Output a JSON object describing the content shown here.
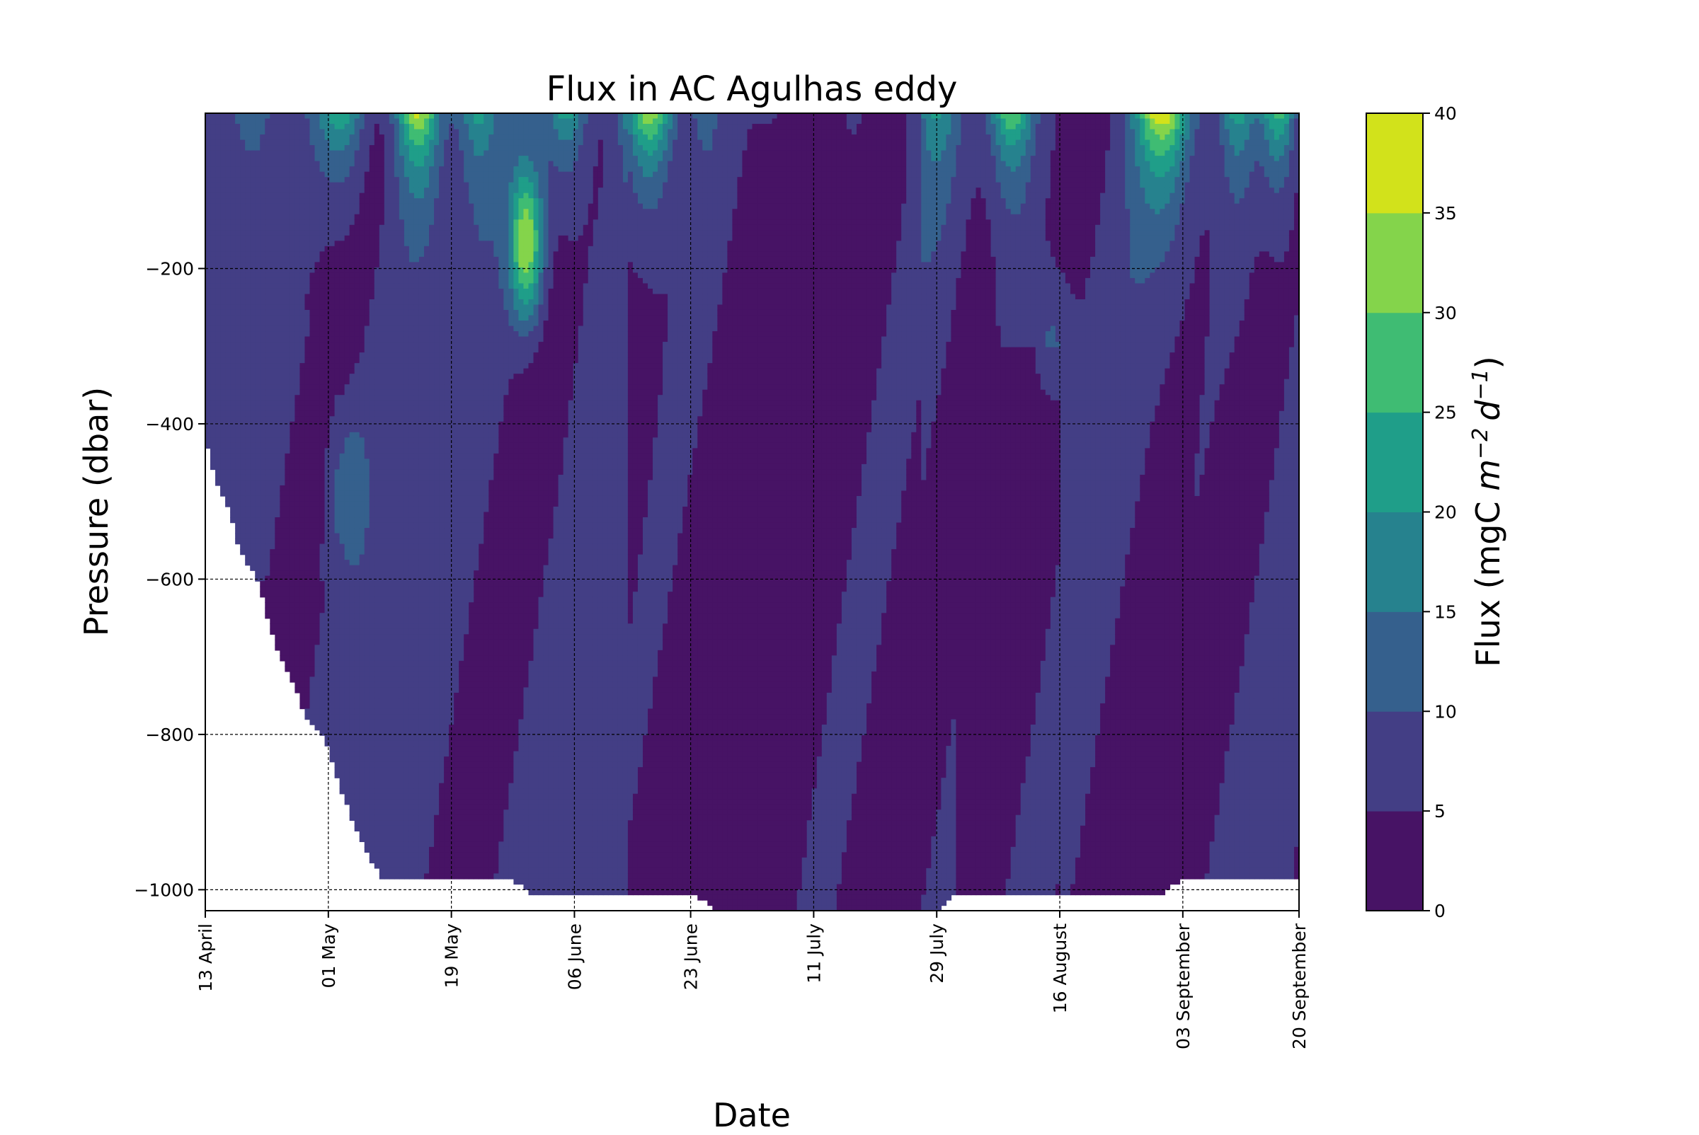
{
  "chart_data": {
    "type": "heatmap",
    "subtype": "filled-contour",
    "title": "Flux in AC Agulhas eddy",
    "xlabel": "Date",
    "ylabel": "Pressure (dbar)",
    "colorbar": {
      "label_prefix": "Flux (mgC ",
      "label_m": "m",
      "label_m_exp": "−2",
      "label_d": "d",
      "label_d_exp": "−1",
      "label_suffix": ")",
      "levels": [
        0,
        5,
        10,
        15,
        20,
        25,
        30,
        35,
        40
      ],
      "level_labels": [
        "0",
        "5",
        "10",
        "15",
        "20",
        "25",
        "30",
        "35",
        "40"
      ],
      "colors": [
        "#471365",
        "#433e85",
        "#35608d",
        "#26828e",
        "#1f9e89",
        "#3fbc73",
        "#84d44b",
        "#d2e21b"
      ]
    },
    "x_ticks": [
      "13 April",
      "01 May",
      "19 May",
      "06 June",
      "23 June",
      "11 July",
      "29 July",
      "16 August",
      "03 September",
      "20 September"
    ],
    "x_tick_days": [
      0,
      18,
      36,
      54,
      71,
      89,
      107,
      125,
      143,
      160
    ],
    "xlim_days": [
      0,
      160
    ],
    "y_ticks": [
      -200,
      -400,
      -600,
      -800,
      -1000
    ],
    "y_tick_labels": [
      "−200",
      "−400",
      "−600",
      "−800",
      "−1000"
    ],
    "ylim": [
      -1027,
      0
    ],
    "grid": true,
    "max_depth_profile": {
      "days": [
        0,
        1.5,
        3,
        5,
        8,
        10,
        13,
        15,
        17,
        18,
        21,
        24,
        26,
        29,
        31,
        33,
        36,
        38,
        40,
        44,
        46,
        48,
        54,
        60,
        66,
        68,
        71,
        75,
        80,
        89,
        100,
        107,
        110,
        115,
        120,
        125,
        133,
        140,
        143,
        150,
        153,
        157,
        160
      ],
      "depth": [
        -420,
        -470,
        -500,
        -560,
        -610,
        -680,
        -740,
        -780,
        -800,
        -820,
        -900,
        -960,
        -985,
        -985,
        -985,
        -985,
        -985,
        -985,
        -985,
        -985,
        -995,
        -1005,
        -1005,
        -1005,
        -1005,
        -1005,
        -1005,
        -1027,
        -1027,
        -1027,
        -1027,
        -1027,
        -1005,
        -1005,
        -1005,
        -1005,
        -1005,
        -1005,
        -985,
        -985,
        -985,
        -985,
        -985
      ]
    },
    "high_flux_features": [
      {
        "date": "early May",
        "peak_flux": 25,
        "depth_range": [
          0,
          -150
        ]
      },
      {
        "date": "mid May",
        "peak_flux": 32,
        "depth_range": [
          0,
          -150
        ]
      },
      {
        "date": "late May",
        "peak_flux": 36,
        "depth_range": [
          -50,
          -300
        ]
      },
      {
        "date": "June",
        "peak_flux": 38,
        "depth_range": [
          0,
          -150
        ]
      },
      {
        "date": "August",
        "peak_flux": 33,
        "depth_range": [
          0,
          -150
        ]
      },
      {
        "date": "late August",
        "peak_flux": 37,
        "depth_range": [
          0,
          -100
        ]
      },
      {
        "date": "September",
        "peak_flux": 30,
        "depth_range": [
          0,
          -100
        ]
      }
    ]
  }
}
